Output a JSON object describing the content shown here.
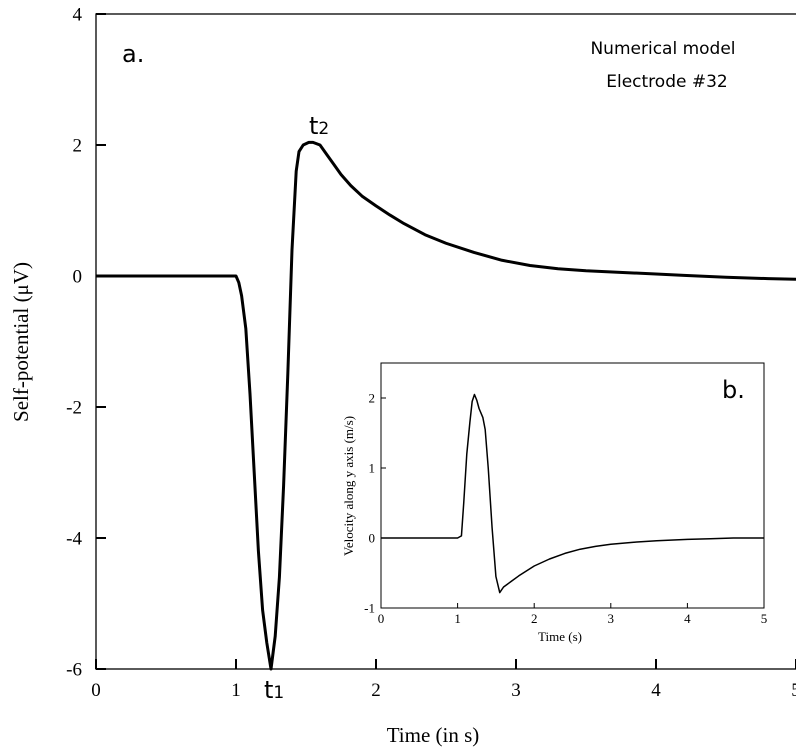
{
  "chart_data": [
    {
      "panel": "a.",
      "type": "line",
      "xlabel": "Time (in s)",
      "ylabel": "Self-potential (μV)",
      "xlim": [
        0,
        5
      ],
      "ylim": [
        -6,
        4
      ],
      "xticks": [
        0,
        1,
        2,
        3,
        4,
        5
      ],
      "xtick_labels": [
        "0",
        "1",
        "2",
        "3",
        "4",
        "5"
      ],
      "yticks": [
        -6,
        -4,
        -2,
        0,
        2,
        4
      ],
      "ytick_labels": [
        "-6",
        "-4",
        "-2",
        "0",
        "2",
        "4"
      ],
      "annotations": [
        "Numerical model",
        "Electrode #32"
      ],
      "markers": [
        {
          "base": "t",
          "sub": "1",
          "x": 1.25,
          "y": -6.0
        },
        {
          "base": "t",
          "sub": "2",
          "x": 1.57,
          "y": 2.04
        }
      ],
      "series": [
        {
          "x": [
            0,
            1.0,
            1.02,
            1.04,
            1.07,
            1.1,
            1.13,
            1.16,
            1.19,
            1.22,
            1.25,
            1.28,
            1.31,
            1.34,
            1.37,
            1.4,
            1.43,
            1.45,
            1.48,
            1.52,
            1.55,
            1.6,
            1.65,
            1.7,
            1.75,
            1.82,
            1.9,
            2.0,
            2.1,
            2.2,
            2.35,
            2.5,
            2.7,
            2.9,
            3.1,
            3.3,
            3.5,
            3.8,
            4.0,
            4.2,
            4.5,
            4.8,
            5.0
          ],
          "y": [
            0,
            0,
            -0.1,
            -0.3,
            -0.8,
            -1.8,
            -3.0,
            -4.2,
            -5.1,
            -5.6,
            -6.0,
            -5.5,
            -4.6,
            -3.2,
            -1.5,
            0.4,
            1.6,
            1.9,
            2.0,
            2.04,
            2.04,
            2.0,
            1.85,
            1.7,
            1.55,
            1.38,
            1.22,
            1.07,
            0.93,
            0.8,
            0.63,
            0.5,
            0.36,
            0.24,
            0.16,
            0.11,
            0.08,
            0.05,
            0.03,
            0.01,
            -0.02,
            -0.04,
            -0.05
          ]
        }
      ]
    },
    {
      "panel": "b.",
      "type": "line",
      "xlabel": "Time (s)",
      "ylabel": "Velocity along y axis (m/s)",
      "xlim": [
        0,
        5
      ],
      "ylim": [
        -1,
        2.5
      ],
      "xticks": [
        0,
        1,
        2,
        3,
        4,
        5
      ],
      "xtick_labels": [
        "0",
        "1",
        "2",
        "3",
        "4",
        "5"
      ],
      "yticks": [
        -1,
        0,
        1,
        2
      ],
      "ytick_labels": [
        "-1",
        "0",
        "1",
        "2"
      ],
      "series": [
        {
          "x": [
            0,
            1.0,
            1.05,
            1.08,
            1.12,
            1.16,
            1.19,
            1.22,
            1.25,
            1.28,
            1.33,
            1.36,
            1.4,
            1.45,
            1.5,
            1.55,
            1.6,
            1.7,
            1.8,
            2.0,
            2.2,
            2.4,
            2.6,
            2.8,
            3.0,
            3.3,
            3.6,
            4.0,
            4.3,
            4.6,
            4.8,
            5.0
          ],
          "y": [
            0,
            0,
            0.03,
            0.5,
            1.2,
            1.65,
            1.95,
            2.05,
            1.97,
            1.85,
            1.72,
            1.55,
            1.0,
            0.15,
            -0.55,
            -0.78,
            -0.7,
            -0.62,
            -0.54,
            -0.4,
            -0.3,
            -0.22,
            -0.16,
            -0.12,
            -0.09,
            -0.06,
            -0.04,
            -0.02,
            -0.01,
            0.0,
            0.0,
            0.0
          ]
        }
      ]
    }
  ]
}
